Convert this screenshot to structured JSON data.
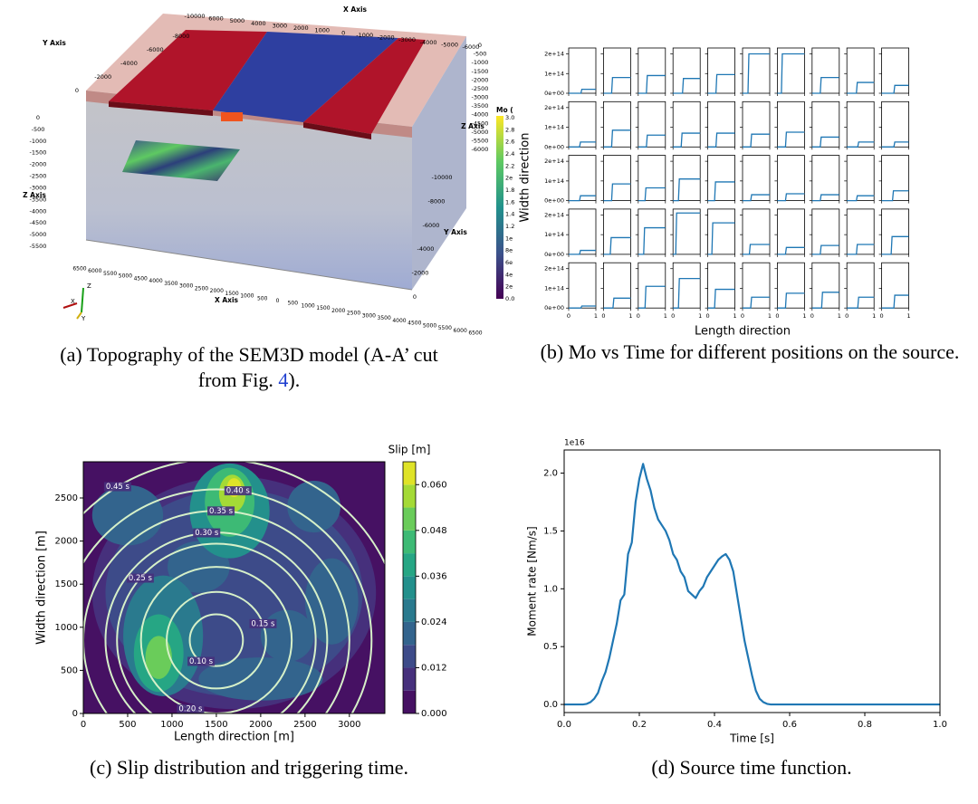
{
  "figure_a": {
    "top_x_axis": {
      "title": "X Axis",
      "ticks": [
        "-10000",
        "6000",
        "5000",
        "4000",
        "3000",
        "2000",
        "1000",
        "0",
        "-1000",
        "-2000",
        "-3000",
        "-4000",
        "-5000",
        "-6000"
      ]
    },
    "left_y_axis": {
      "title": "Y Axis",
      "ticks": [
        "-8000",
        "-6000",
        "-4000",
        "-2000",
        "0"
      ]
    },
    "right_z_axis": {
      "title": "Z Axis",
      "ticks": [
        "0",
        "-500",
        "-1000",
        "-1500",
        "-2000",
        "-2500",
        "-3000",
        "-3500",
        "-4000",
        "-4500",
        "-5000",
        "-5500",
        "-6000"
      ]
    },
    "left_z_axis": {
      "title": "Z Axis",
      "ticks": [
        "0",
        "-500",
        "-1000",
        "-1500",
        "-2000",
        "-2500",
        "-3000",
        "-3500",
        "-4000",
        "-4500",
        "-5000",
        "-5500"
      ]
    },
    "right_y_axis": {
      "title": "Y Axis",
      "ticks": [
        "-10000",
        "-8000",
        "-6000",
        "-4000",
        "-2000",
        "0"
      ]
    },
    "bottom_x_axis": {
      "title": "X Axis",
      "ticks": [
        "6500",
        "6000",
        "5500",
        "5000",
        "4500",
        "4000",
        "3500",
        "3000",
        "2500",
        "2000",
        "1500",
        "1000",
        "500",
        "0",
        "500",
        "1000",
        "1500",
        "2000",
        "2500",
        "3000",
        "3500",
        "4000",
        "4500",
        "5000",
        "5500",
        "6000",
        "6500"
      ]
    },
    "colorbar": {
      "title": "Mo (",
      "labels": [
        "3.0",
        "2.8",
        "2.6",
        "2.4",
        "2.2",
        "2e",
        "1.8",
        "1.6",
        "1.4",
        "1.2",
        "1e",
        "8e",
        "6e",
        "4e",
        "2e",
        "0.0"
      ]
    },
    "orientation": {
      "x": "X",
      "y": "Y",
      "z": "Z"
    }
  },
  "captions": {
    "a": {
      "text": "(a) Topography of the SEM3D model (A-A’ cut from Fig. ",
      "ref": "4",
      "end": ")."
    },
    "b": "(b) Mo vs Time for different positions on the source.",
    "c": "(c) Slip distribution and triggering time.",
    "d": "(d) Source time function."
  },
  "chart_data": [
    {
      "type": "step_grid",
      "ylabel": "Width direction",
      "xlabel": "Length direction",
      "color": "#1f77b4",
      "xlim": [
        0,
        1
      ],
      "xticks": [
        0,
        1
      ],
      "ylim": [
        0,
        230000000000000.0
      ],
      "yticks": [
        {
          "value": 0,
          "label": "0e+00"
        },
        {
          "value": 100000000000000.0,
          "label": "1e+14"
        },
        {
          "value": 200000000000000.0,
          "label": "2e+14"
        }
      ],
      "rows": [
        [
          {
            "onset": 0.45,
            "mo": 20000000000000.0
          },
          {
            "onset": 0.3,
            "mo": 80000000000000.0
          },
          {
            "onset": 0.3,
            "mo": 90000000000000.0
          },
          {
            "onset": 0.35,
            "mo": 75000000000000.0
          },
          {
            "onset": 0.3,
            "mo": 95000000000000.0
          },
          {
            "onset": 0.2,
            "mo": 200000000000000.0
          },
          {
            "onset": 0.15,
            "mo": 200000000000000.0
          },
          {
            "onset": 0.3,
            "mo": 80000000000000.0
          },
          {
            "onset": 0.35,
            "mo": 55000000000000.0
          },
          {
            "onset": 0.45,
            "mo": 40000000000000.0
          }
        ],
        [
          {
            "onset": 0.4,
            "mo": 25000000000000.0
          },
          {
            "onset": 0.3,
            "mo": 85000000000000.0
          },
          {
            "onset": 0.3,
            "mo": 60000000000000.0
          },
          {
            "onset": 0.3,
            "mo": 70000000000000.0
          },
          {
            "onset": 0.3,
            "mo": 70000000000000.0
          },
          {
            "onset": 0.3,
            "mo": 65000000000000.0
          },
          {
            "onset": 0.3,
            "mo": 75000000000000.0
          },
          {
            "onset": 0.3,
            "mo": 50000000000000.0
          },
          {
            "onset": 0.4,
            "mo": 25000000000000.0
          },
          {
            "onset": 0.45,
            "mo": 25000000000000.0
          }
        ],
        [
          {
            "onset": 0.4,
            "mo": 25000000000000.0
          },
          {
            "onset": 0.3,
            "mo": 85000000000000.0
          },
          {
            "onset": 0.25,
            "mo": 65000000000000.0
          },
          {
            "onset": 0.2,
            "mo": 110000000000000.0
          },
          {
            "onset": 0.25,
            "mo": 95000000000000.0
          },
          {
            "onset": 0.3,
            "mo": 30000000000000.0
          },
          {
            "onset": 0.3,
            "mo": 35000000000000.0
          },
          {
            "onset": 0.3,
            "mo": 30000000000000.0
          },
          {
            "onset": 0.35,
            "mo": 25000000000000.0
          },
          {
            "onset": 0.4,
            "mo": 50000000000000.0
          }
        ],
        [
          {
            "onset": 0.4,
            "mo": 20000000000000.0
          },
          {
            "onset": 0.25,
            "mo": 85000000000000.0
          },
          {
            "onset": 0.2,
            "mo": 135000000000000.0
          },
          {
            "onset": 0.1,
            "mo": 210000000000000.0
          },
          {
            "onset": 0.15,
            "mo": 160000000000000.0
          },
          {
            "onset": 0.25,
            "mo": 50000000000000.0
          },
          {
            "onset": 0.3,
            "mo": 35000000000000.0
          },
          {
            "onset": 0.3,
            "mo": 45000000000000.0
          },
          {
            "onset": 0.35,
            "mo": 50000000000000.0
          },
          {
            "onset": 0.35,
            "mo": 90000000000000.0
          }
        ],
        [
          {
            "onset": 0.45,
            "mo": 10000000000000.0
          },
          {
            "onset": 0.35,
            "mo": 50000000000000.0
          },
          {
            "onset": 0.25,
            "mo": 110000000000000.0
          },
          {
            "onset": 0.2,
            "mo": 150000000000000.0
          },
          {
            "onset": 0.25,
            "mo": 95000000000000.0
          },
          {
            "onset": 0.3,
            "mo": 55000000000000.0
          },
          {
            "onset": 0.3,
            "mo": 75000000000000.0
          },
          {
            "onset": 0.35,
            "mo": 80000000000000.0
          },
          {
            "onset": 0.4,
            "mo": 55000000000000.0
          },
          {
            "onset": 0.45,
            "mo": 65000000000000.0
          }
        ]
      ]
    },
    {
      "type": "contour",
      "xlabel": "Length direction [m]",
      "ylabel": "Width direction [m]",
      "colorbar_title": "Slip [m]",
      "xlim": [
        0,
        3400
      ],
      "ylim": [
        0,
        2920
      ],
      "xticks": [
        0,
        500,
        1000,
        1500,
        2000,
        2500,
        3000
      ],
      "yticks": [
        0,
        500,
        1000,
        1500,
        2000,
        2500
      ],
      "colormap": "viridis",
      "clim": [
        0,
        0.066
      ],
      "levels": [
        0,
        0.006,
        0.012,
        0.018,
        0.024,
        0.03,
        0.036,
        0.042,
        0.048,
        0.054,
        0.06,
        0.066
      ],
      "colorbar_ticks": [
        {
          "value": 0,
          "label": "0.000"
        },
        {
          "value": 0.012,
          "label": "0.012"
        },
        {
          "value": 0.024,
          "label": "0.024"
        },
        {
          "value": 0.036,
          "label": "0.036"
        },
        {
          "value": 0.048,
          "label": "0.048"
        },
        {
          "value": 0.06,
          "label": "0.060"
        }
      ],
      "background": 0.003,
      "slip_patches": [
        {
          "x": 1700,
          "y": 1400,
          "rx": 1600,
          "ry": 1350,
          "value": 0.009
        },
        {
          "x": 1700,
          "y": 1400,
          "rx": 1450,
          "ry": 1200,
          "value": 0.014
        },
        {
          "x": 500,
          "y": 2300,
          "rx": 400,
          "ry": 350,
          "value": 0.02
        },
        {
          "x": 2000,
          "y": 400,
          "rx": 700,
          "ry": 250,
          "value": 0.02
        },
        {
          "x": 2800,
          "y": 1300,
          "rx": 300,
          "ry": 500,
          "value": 0.02
        },
        {
          "x": 2600,
          "y": 2400,
          "rx": 300,
          "ry": 300,
          "value": 0.02
        },
        {
          "x": 1300,
          "y": 1700,
          "rx": 350,
          "ry": 300,
          "value": 0.02
        },
        {
          "x": 2300,
          "y": 900,
          "rx": 300,
          "ry": 300,
          "value": 0.02
        },
        {
          "x": 1650,
          "y": 2350,
          "rx": 450,
          "ry": 550,
          "value": 0.03
        },
        {
          "x": 1650,
          "y": 2450,
          "rx": 280,
          "ry": 400,
          "value": 0.042
        },
        {
          "x": 1680,
          "y": 2550,
          "rx": 150,
          "ry": 220,
          "value": 0.054
        },
        {
          "x": 1700,
          "y": 2620,
          "rx": 80,
          "ry": 110,
          "value": 0.062
        },
        {
          "x": 900,
          "y": 900,
          "rx": 450,
          "ry": 700,
          "value": 0.026
        },
        {
          "x": 850,
          "y": 700,
          "rx": 280,
          "ry": 450,
          "value": 0.037
        },
        {
          "x": 850,
          "y": 650,
          "rx": 150,
          "ry": 250,
          "value": 0.049
        }
      ],
      "hypocenter": {
        "x": 1500,
        "y": 850
      },
      "contour_color": "#d6f0c8",
      "rupture_time_contours": [
        {
          "value": 0.1,
          "label": "0.10 s",
          "radius": 300
        },
        {
          "value": 0.15,
          "label": "0.15 s",
          "radius": 560
        },
        {
          "value": 0.2,
          "label": "0.20 s",
          "radius": 850
        },
        {
          "value": 0.25,
          "label": "0.25 s",
          "radius": 1120
        },
        {
          "value": 0.3,
          "label": "0.30 s",
          "radius": 1250
        },
        {
          "value": 0.35,
          "label": "0.35 s",
          "radius": 1500
        },
        {
          "value": 0.4,
          "label": "0.40 s",
          "radius": 1750
        },
        {
          "value": 0.45,
          "label": "0.45 s",
          "radius": 2100
        }
      ]
    },
    {
      "type": "line",
      "xlabel": "Time [s]",
      "ylabel": "Moment rate [Nm/s]",
      "offset_label": "1e16",
      "color": "#1f77b4",
      "xlim": [
        0,
        1
      ],
      "ylim": [
        -0.07,
        2.2
      ],
      "xticks": [
        {
          "value": 0,
          "label": "0.0"
        },
        0.2,
        0.4,
        0.6,
        0.8,
        {
          "value": 1,
          "label": "1.0"
        }
      ],
      "yticks": [
        {
          "value": 0,
          "label": "0.0"
        },
        0.5,
        {
          "value": 1,
          "label": "1.0"
        },
        1.5,
        {
          "value": 2,
          "label": "2.0"
        }
      ],
      "x": [
        0,
        0.05,
        0.06,
        0.07,
        0.08,
        0.09,
        0.1,
        0.11,
        0.12,
        0.13,
        0.14,
        0.15,
        0.16,
        0.17,
        0.18,
        0.19,
        0.2,
        0.21,
        0.22,
        0.23,
        0.24,
        0.25,
        0.26,
        0.27,
        0.28,
        0.29,
        0.3,
        0.31,
        0.32,
        0.33,
        0.34,
        0.35,
        0.36,
        0.37,
        0.38,
        0.39,
        0.4,
        0.41,
        0.42,
        0.43,
        0.44,
        0.45,
        0.46,
        0.47,
        0.48,
        0.49,
        0.5,
        0.51,
        0.52,
        0.53,
        0.54,
        0.55,
        1
      ],
      "values": [
        0,
        0,
        0.005,
        0.02,
        0.05,
        0.1,
        0.2,
        0.28,
        0.4,
        0.55,
        0.7,
        0.9,
        0.95,
        1.3,
        1.4,
        1.75,
        1.95,
        2.08,
        1.95,
        1.85,
        1.7,
        1.6,
        1.55,
        1.5,
        1.42,
        1.3,
        1.25,
        1.15,
        1.1,
        0.98,
        0.95,
        0.92,
        0.98,
        1.02,
        1.1,
        1.15,
        1.2,
        1.25,
        1.28,
        1.3,
        1.25,
        1.15,
        0.95,
        0.75,
        0.55,
        0.4,
        0.25,
        0.12,
        0.05,
        0.02,
        0.005,
        0,
        0
      ]
    }
  ]
}
